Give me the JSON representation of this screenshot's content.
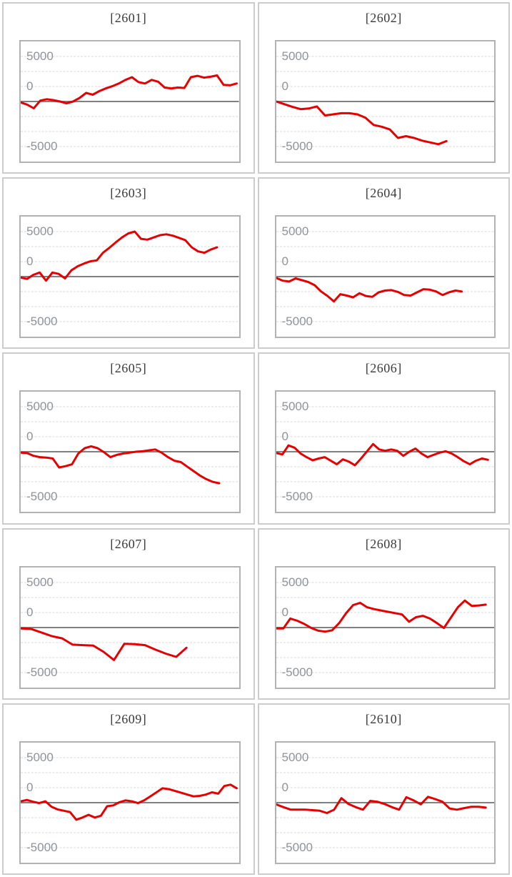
{
  "page": {
    "background": "#ffffff",
    "description": "Grid of 10 slot-machine daily payout differential line charts, numbered 2601-2610"
  },
  "styles": {
    "line_color": "#e60000",
    "grid_line_color": "#d9d9d9",
    "zero_line_color": "#808080",
    "plot_border_color": "#b2b2b2",
    "panel_border_color": "#cccccc",
    "axis_label_color": "#8f9499",
    "title_color": "#3a3a3a"
  },
  "chart_data": [
    {
      "type": "line",
      "title": "[2601]",
      "yticks": [
        "5000",
        "0",
        "-5000"
      ],
      "ylim": [
        -6667,
        6667
      ],
      "grid": true,
      "zero_line": true,
      "x_span_fraction": 0.99,
      "series": [
        {
          "name": "coin-differential",
          "values": [
            -100,
            -350,
            -750,
            100,
            250,
            150,
            0,
            -200,
            0,
            400,
            950,
            750,
            1150,
            1450,
            1700,
            2000,
            2400,
            2700,
            2150,
            2000,
            2400,
            2200,
            1550,
            1450,
            1550,
            1500,
            2700,
            2850,
            2650,
            2750,
            2900,
            1850,
            1800,
            2000
          ]
        }
      ]
    },
    {
      "type": "line",
      "title": "[2602]",
      "yticks": [
        "5000",
        "0",
        "-5000"
      ],
      "ylim": [
        -6667,
        6667
      ],
      "grid": true,
      "zero_line": true,
      "x_span_fraction": 0.78,
      "series": [
        {
          "name": "coin-differential",
          "values": [
            0,
            -300,
            -600,
            -850,
            -780,
            -550,
            -1550,
            -1430,
            -1300,
            -1300,
            -1430,
            -1800,
            -2600,
            -2800,
            -3100,
            -4050,
            -3850,
            -4050,
            -4350,
            -4550,
            -4750,
            -4400
          ]
        }
      ]
    },
    {
      "type": "line",
      "title": "[2603]",
      "yticks": [
        "5000",
        "0",
        "-5000"
      ],
      "ylim": [
        -6667,
        6667
      ],
      "grid": true,
      "zero_line": true,
      "x_span_fraction": 0.9,
      "series": [
        {
          "name": "coin-differential",
          "values": [
            -100,
            -250,
            200,
            450,
            -450,
            450,
            300,
            -200,
            700,
            1150,
            1450,
            1700,
            1800,
            2650,
            3200,
            3800,
            4350,
            4800,
            5000,
            4200,
            4100,
            4350,
            4600,
            4700,
            4550,
            4300,
            4050,
            3250,
            2800,
            2650,
            3000,
            3250
          ]
        }
      ]
    },
    {
      "type": "line",
      "title": "[2604]",
      "yticks": [
        "5000",
        "0",
        "-5000"
      ],
      "ylim": [
        -6667,
        6667
      ],
      "grid": true,
      "zero_line": true,
      "x_span_fraction": 0.85,
      "series": [
        {
          "name": "coin-differential",
          "values": [
            -150,
            -450,
            -550,
            -200,
            -400,
            -600,
            -950,
            -1650,
            -2150,
            -2750,
            -1950,
            -2100,
            -2300,
            -1850,
            -2150,
            -2250,
            -1750,
            -1550,
            -1500,
            -1700,
            -2050,
            -2100,
            -1750,
            -1400,
            -1450,
            -1650,
            -2050,
            -1750,
            -1550,
            -1650
          ]
        }
      ]
    },
    {
      "type": "line",
      "title": "[2605]",
      "yticks": [
        "5000",
        "0",
        "-5000"
      ],
      "ylim": [
        -6667,
        6667
      ],
      "grid": true,
      "zero_line": true,
      "x_span_fraction": 0.91,
      "series": [
        {
          "name": "coin-differential",
          "values": [
            -100,
            -150,
            -450,
            -600,
            -650,
            -750,
            -1750,
            -1600,
            -1400,
            -200,
            400,
            600,
            400,
            -50,
            -600,
            -350,
            -200,
            -100,
            0,
            50,
            150,
            250,
            -100,
            -600,
            -1000,
            -1150,
            -1650,
            -2150,
            -2650,
            -3050,
            -3350,
            -3500
          ]
        }
      ]
    },
    {
      "type": "line",
      "title": "[2606]",
      "yticks": [
        "5000",
        "0",
        "-5000"
      ],
      "ylim": [
        -6667,
        6667
      ],
      "grid": true,
      "zero_line": true,
      "x_span_fraction": 0.97,
      "series": [
        {
          "name": "coin-differential",
          "values": [
            -150,
            -300,
            700,
            450,
            -200,
            -600,
            -950,
            -750,
            -600,
            -1000,
            -1400,
            -850,
            -1100,
            -1500,
            -750,
            50,
            850,
            250,
            100,
            250,
            100,
            -450,
            0,
            350,
            -200,
            -600,
            -350,
            -100,
            50,
            -200,
            -600,
            -1050,
            -1400,
            -1000,
            -750,
            -900
          ]
        }
      ]
    },
    {
      "type": "line",
      "title": "[2607]",
      "yticks": [
        "5000",
        "0",
        "-5000"
      ],
      "ylim": [
        -6667,
        6667
      ],
      "grid": true,
      "zero_line": true,
      "x_span_fraction": 0.76,
      "series": [
        {
          "name": "coin-differential",
          "values": [
            -100,
            -150,
            -550,
            -950,
            -1200,
            -1900,
            -1950,
            -2000,
            -2700,
            -3600,
            -1800,
            -1850,
            -1950,
            -2450,
            -2900,
            -3250,
            -2250
          ]
        }
      ]
    },
    {
      "type": "line",
      "title": "[2608]",
      "yticks": [
        "5000",
        "0",
        "-5000"
      ],
      "ylim": [
        -6667,
        6667
      ],
      "grid": true,
      "zero_line": true,
      "x_span_fraction": 0.96,
      "series": [
        {
          "name": "coin-differential",
          "values": [
            -100,
            -100,
            1000,
            750,
            400,
            -50,
            -350,
            -450,
            -300,
            500,
            1600,
            2500,
            2750,
            2250,
            2050,
            1900,
            1750,
            1600,
            1450,
            650,
            1150,
            1300,
            1000,
            500,
            -50,
            1100,
            2250,
            3000,
            2400,
            2450,
            2550
          ]
        }
      ]
    },
    {
      "type": "line",
      "title": "[2609]",
      "yticks": [
        "5000",
        "0",
        "-5000"
      ],
      "ylim": [
        -6667,
        6667
      ],
      "grid": true,
      "zero_line": true,
      "x_span_fraction": 0.99,
      "series": [
        {
          "name": "coin-differential",
          "values": [
            150,
            300,
            100,
            -50,
            150,
            -450,
            -750,
            -900,
            -1050,
            -1900,
            -1650,
            -1350,
            -1650,
            -1450,
            -400,
            -300,
            50,
            250,
            150,
            -50,
            250,
            700,
            1150,
            1600,
            1500,
            1300,
            1100,
            900,
            700,
            750,
            900,
            1150,
            1000,
            1850,
            2000,
            1600
          ]
        }
      ]
    },
    {
      "type": "line",
      "title": "[2610]",
      "yticks": [
        "5000",
        "0",
        "-5000"
      ],
      "ylim": [
        -6667,
        6667
      ],
      "grid": true,
      "zero_line": true,
      "x_span_fraction": 0.96,
      "series": [
        {
          "name": "coin-differential",
          "values": [
            -200,
            -500,
            -780,
            -780,
            -780,
            -830,
            -900,
            -1150,
            -780,
            500,
            -150,
            -500,
            -780,
            200,
            100,
            -150,
            -500,
            -780,
            600,
            250,
            -180,
            650,
            400,
            100,
            -650,
            -780,
            -600,
            -450,
            -450,
            -550
          ]
        }
      ]
    }
  ]
}
